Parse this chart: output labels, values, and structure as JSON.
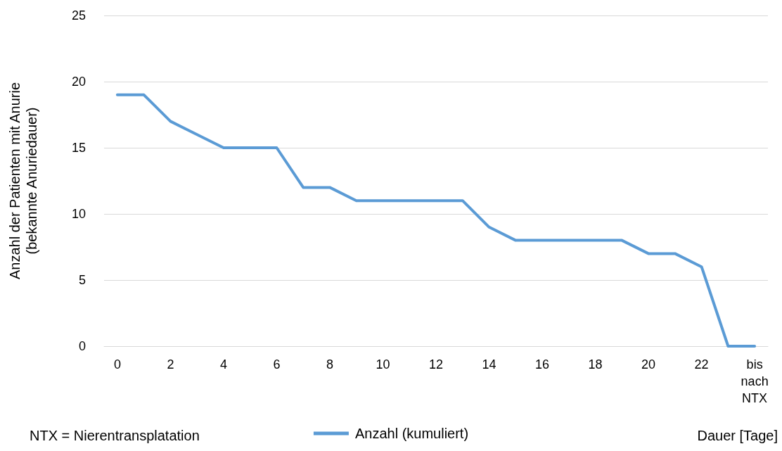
{
  "chart_data": {
    "type": "line",
    "xlabel": "Dauer [Tage]",
    "ylabel": "Anzahl der Patienten mit Anurie (bekannte Anuriedauer)",
    "annotations": [
      "NTX = Nierentransplatation"
    ],
    "categories": [
      "0",
      null,
      "2",
      null,
      "4",
      null,
      "6",
      null,
      "8",
      null,
      "10",
      null,
      "12",
      null,
      "14",
      null,
      "16",
      null,
      "18",
      null,
      "20",
      null,
      "22",
      null,
      "bis nach NTX"
    ],
    "series": [
      {
        "name": "Anzahl (kumuliert)",
        "color": "#5b9bd5",
        "values": [
          19,
          19,
          17,
          16,
          15,
          15,
          15,
          12,
          12,
          11,
          11,
          11,
          11,
          11,
          9,
          8,
          8,
          8,
          8,
          8,
          7,
          7,
          6,
          0,
          0
        ]
      }
    ],
    "ylim": [
      0,
      25
    ],
    "yticks": [
      0,
      5,
      10,
      15,
      20,
      25
    ],
    "grid": "y",
    "legend": "bottom",
    "marker": "none",
    "line_style": "solid"
  }
}
